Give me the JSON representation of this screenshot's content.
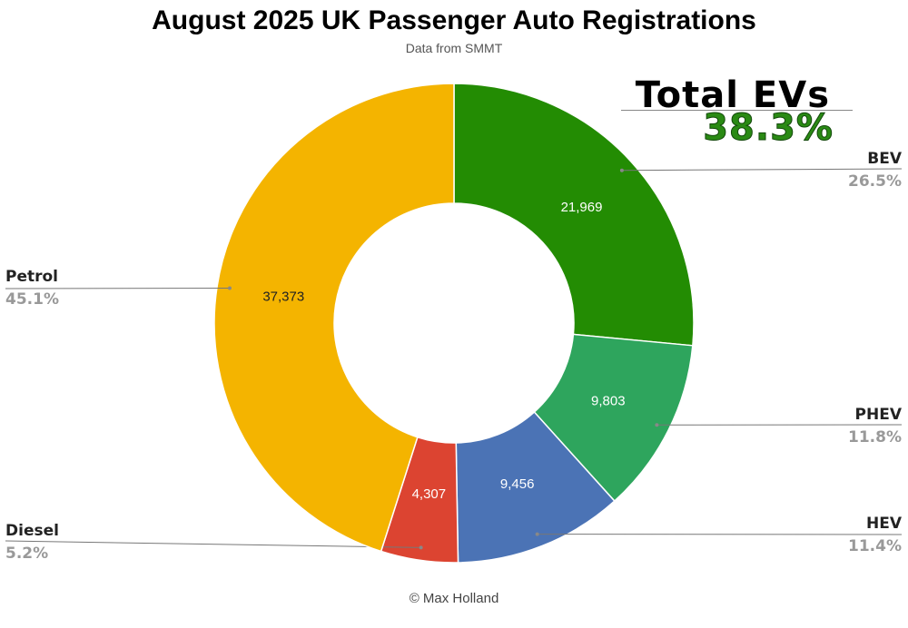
{
  "chart_data": {
    "type": "pie",
    "subtype": "donut",
    "title": "August 2025 UK Passenger Auto Registrations",
    "subtitle": "Data from SMMT",
    "total_ev": {
      "label": "Total EVs",
      "value": "38.3%"
    },
    "footer": "© Max Holland",
    "legend_placement": "outside labels with leader lines",
    "slices": [
      {
        "name": "BEV",
        "value": 21969,
        "value_label": "21,969",
        "percent": "26.5%",
        "color": "#238c03",
        "value_text_color": "#ffffff"
      },
      {
        "name": "PHEV",
        "value": 9803,
        "value_label": "9,803",
        "percent": "11.8%",
        "color": "#2ea55d",
        "value_text_color": "#ffffff"
      },
      {
        "name": "HEV",
        "value": 9456,
        "value_label": "9,456",
        "percent": "11.4%",
        "color": "#4b73b5",
        "value_text_color": "#ffffff"
      },
      {
        "name": "Diesel",
        "value": 4307,
        "value_label": "4,307",
        "percent": "5.2%",
        "color": "#dc4431",
        "value_text_color": "#ffffff"
      },
      {
        "name": "Petrol",
        "value": 37373,
        "value_label": "37,373",
        "percent": "45.1%",
        "color": "#f4b400",
        "value_text_color": "#222222"
      }
    ]
  }
}
